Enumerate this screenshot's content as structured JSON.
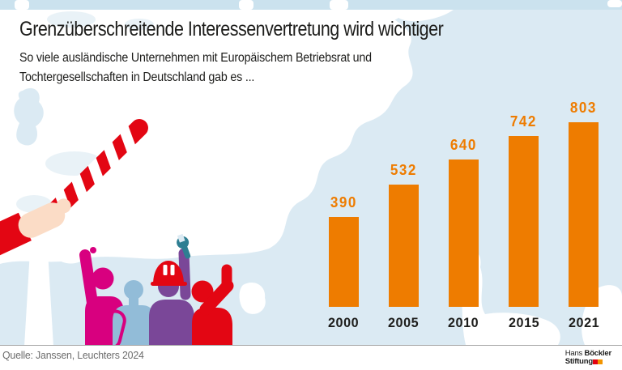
{
  "header": {
    "title": "Grenzüberschreitende Interessenvertretung wird wichtiger",
    "subtitle_lines": [
      "So viele ausländische Unternehmen mit Europäischem Betriebsrat und",
      "Tochtergesellschaften in Deutschland gab es ..."
    ]
  },
  "chart_data": {
    "type": "bar",
    "title": "Grenzüberschreitende Interessenvertretung wird wichtiger",
    "subtitle": "So viele ausländische Unternehmen mit Europäischem Betriebsrat und Tochtergesellschaften in Deutschland gab es ...",
    "categories": [
      "2000",
      "2005",
      "2010",
      "2015",
      "2021"
    ],
    "values": [
      390,
      532,
      640,
      742,
      803
    ],
    "xlabel": "",
    "ylabel": "",
    "ylim": [
      0,
      850
    ],
    "grid": false,
    "legend": false,
    "value_labels_shown": true,
    "bar_color": "#ee7c00",
    "value_label_color": "#ee7c00",
    "category_label_color": "#1d1d1b"
  },
  "footer": {
    "source": "Quelle: Janssen, Leuchters 2024",
    "logo": {
      "name_regular": "Hans",
      "name_bold": "Böckler",
      "line2": "Stiftung",
      "block_colors": [
        "#e2000f",
        "#f29400"
      ]
    }
  },
  "map": {
    "sea_color": "#ffffff",
    "land_color": "#dbeaf3",
    "top_band_color": "#cbe2ee",
    "pale_land_color": "#e9f2f7"
  },
  "illustration": {
    "barrier": {
      "stripe_red": "#e30613",
      "stripe_white": "#ffffff",
      "post_color": "#ffffff"
    },
    "hand": {
      "skin_color": "#fbdcc6",
      "sleeve_color": "#e30613"
    },
    "workers": {
      "magenta": "#d8007f",
      "blue": "#92bcd8",
      "purple": "#7a4798",
      "red": "#e30613",
      "helmet": "#e30613",
      "wrench": "#2e7e92"
    }
  },
  "text_colors": {
    "title": "#1d1d1b",
    "subtitle": "#1d1d1b",
    "source": "#6d6d6d",
    "logo_text": "#1a1a1a"
  }
}
